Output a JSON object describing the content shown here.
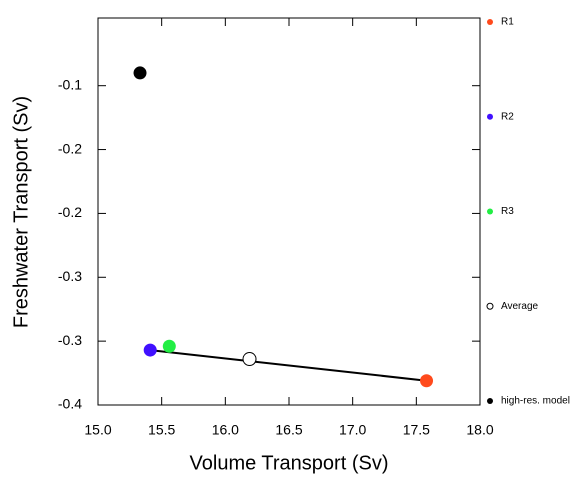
{
  "chart_data": {
    "type": "scatter",
    "xlabel": "Volume Transport (Sv)",
    "ylabel": "Freshwater Transport (Sv)",
    "xlim": [
      15.0,
      18.0
    ],
    "xticks": [
      {
        "value": 15.0,
        "label": "15.0"
      },
      {
        "value": 15.5,
        "label": "15.5"
      },
      {
        "value": 16.0,
        "label": "16.0"
      },
      {
        "value": 16.5,
        "label": "16.5"
      },
      {
        "value": 17.0,
        "label": "17.0"
      },
      {
        "value": 17.5,
        "label": "17.5"
      },
      {
        "value": 18.0,
        "label": "18.0"
      }
    ],
    "ylim": [
      -0.35,
      -0.047
    ],
    "yticks": [
      {
        "value": -0.1,
        "label": "-0.1"
      },
      {
        "value": -0.15,
        "label": "-0.2"
      },
      {
        "value": -0.2,
        "label": "-0.2"
      },
      {
        "value": -0.25,
        "label": "-0.3"
      },
      {
        "value": -0.3,
        "label": "-0.3"
      },
      {
        "value": -0.35,
        "label": "-0.4"
      }
    ],
    "series": [
      {
        "name": "R1",
        "color": "#ff4a1c",
        "marker": "filled",
        "x": [
          17.58
        ],
        "values": [
          -0.331
        ]
      },
      {
        "name": "R2",
        "color": "#4010ff",
        "marker": "filled",
        "x": [
          15.41
        ],
        "values": [
          -0.307
        ]
      },
      {
        "name": "R3",
        "color": "#22ee44",
        "marker": "filled",
        "x": [
          15.56
        ],
        "values": [
          -0.304
        ]
      },
      {
        "name": "Average",
        "color": "#000000",
        "marker": "open",
        "x": [
          16.19
        ],
        "values": [
          -0.314
        ]
      },
      {
        "name": "high-res. model",
        "color": "#000000",
        "marker": "filled",
        "x": [
          15.33
        ],
        "values": [
          -0.09
        ]
      }
    ]
  }
}
